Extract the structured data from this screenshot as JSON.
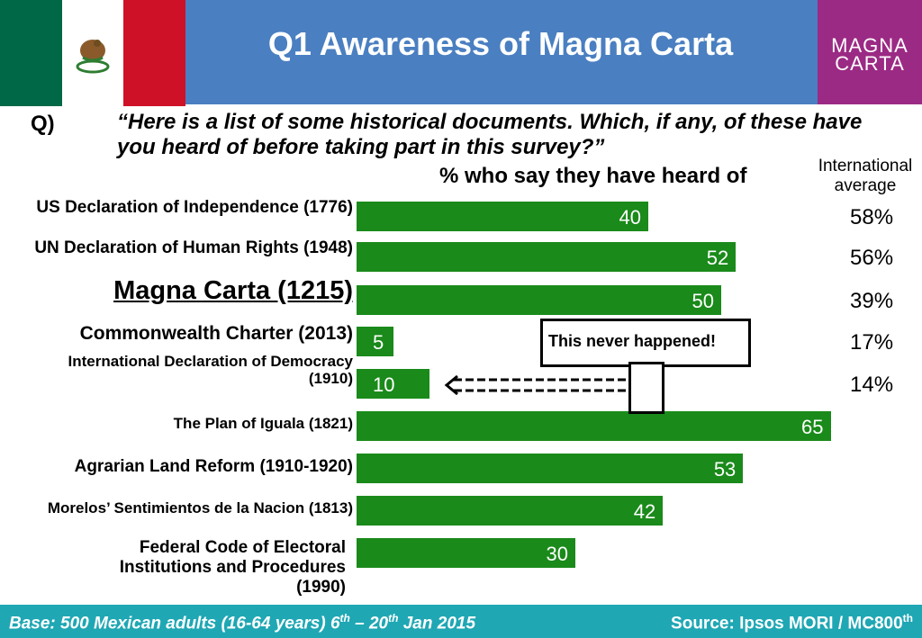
{
  "header": {
    "title": "Q1 Awareness of Magna Carta",
    "logo_line1": "MAGNA",
    "logo_line2": "CARTA",
    "colors": {
      "header": "#4a7fc1",
      "logo": "#9b2a84",
      "bar": "#1a8a1a",
      "footer": "#1fa7b4"
    }
  },
  "question": {
    "label": "Q)",
    "text": "“Here is a list of some historical documents. Which, if any, of these have you heard of before taking part in this survey?”",
    "measure": "% who say they have heard of",
    "intl_header": "International average"
  },
  "chart_data": {
    "type": "bar",
    "orientation": "horizontal",
    "categories": [
      "US Declaration of Independence (1776)",
      "UN Declaration of Human Rights (1948)",
      "Magna Carta (1215)",
      "Commonwealth Charter (2013)",
      "International Declaration of Democracy (1910)",
      "The Plan of Iguala (1821)",
      "Agrarian Land Reform (1910-1920)",
      "Morelos’ Sentimientos de la Nacion (1813)",
      "Federal Code of Electoral Institutions and Procedures (1990)"
    ],
    "values": [
      40,
      52,
      50,
      5,
      10,
      65,
      53,
      42,
      30
    ],
    "international_average": [
      "58%",
      "56%",
      "39%",
      "17%",
      "14%",
      null,
      null,
      null,
      null
    ],
    "annotation": "This never happened!"
  },
  "footer": {
    "base_prefix": "Base: 500 Mexican adults (16-64 years) 6",
    "base_sup1": "th",
    "base_mid": " – 20",
    "base_sup2": "th",
    "base_suffix": " Jan 2015",
    "source_prefix": "Source: Ipsos MORI / MC800",
    "source_sup": "th"
  }
}
